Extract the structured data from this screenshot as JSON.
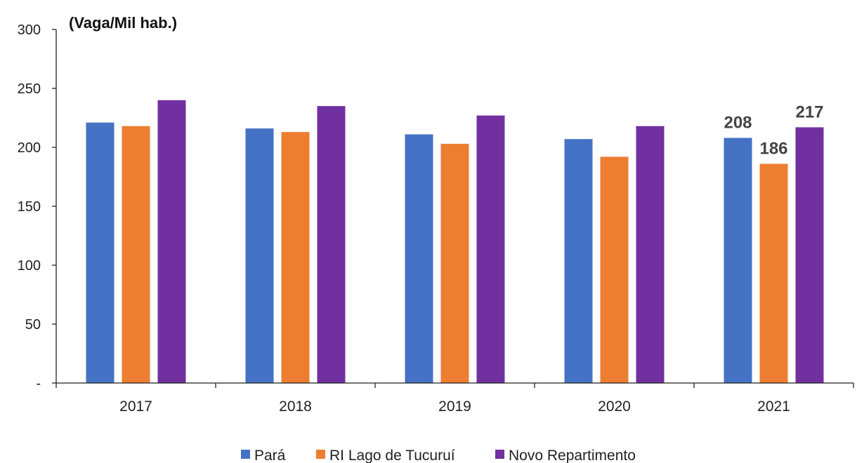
{
  "chart_data": {
    "type": "bar",
    "unit_label": "(Vaga/Mil hab.)",
    "categories": [
      "2017",
      "2018",
      "2019",
      "2020",
      "2021"
    ],
    "y_ticks": [
      {
        "value": 0,
        "label": "-"
      },
      {
        "value": 50,
        "label": "50"
      },
      {
        "value": 100,
        "label": "100"
      },
      {
        "value": 150,
        "label": "150"
      },
      {
        "value": 200,
        "label": "200"
      },
      {
        "value": 250,
        "label": "250"
      },
      {
        "value": 300,
        "label": "300"
      }
    ],
    "ylim": [
      0,
      300
    ],
    "grid": false,
    "legend_position": "bottom",
    "series": [
      {
        "name": "Pará",
        "color": "#4472C4",
        "values": [
          221,
          216,
          211,
          207,
          208
        ],
        "labels": [
          null,
          null,
          null,
          null,
          "208"
        ]
      },
      {
        "name": "RI Lago de Tucuruí",
        "color": "#ED7D31",
        "values": [
          218,
          213,
          203,
          192,
          186
        ],
        "labels": [
          null,
          null,
          null,
          null,
          "186"
        ]
      },
      {
        "name": "Novo Repartimento",
        "color": "#7030A0",
        "values": [
          240,
          235,
          227,
          218,
          217
        ],
        "labels": [
          null,
          null,
          null,
          null,
          "217"
        ]
      }
    ]
  }
}
